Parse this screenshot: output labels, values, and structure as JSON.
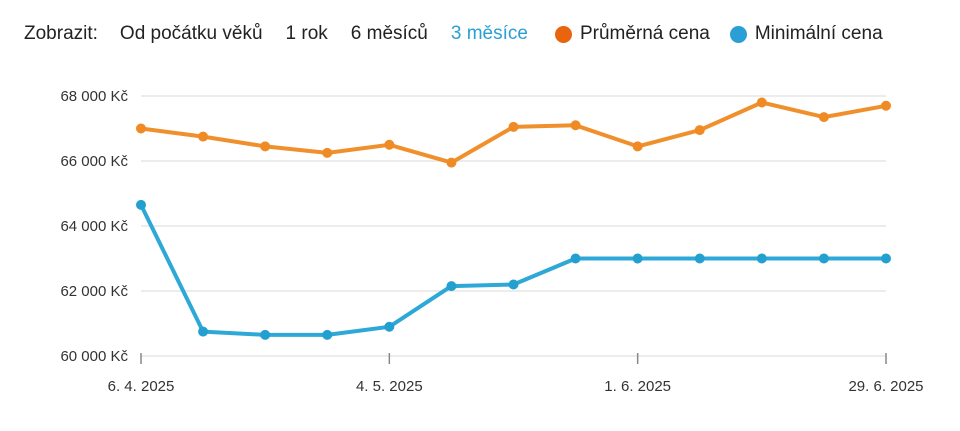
{
  "toolbar": {
    "label": "Zobrazit:",
    "ranges": [
      "Od počátku věků",
      "1 rok",
      "6 měsíců",
      "3 měsíce"
    ],
    "active_range": "3 měsíce"
  },
  "legend": [
    {
      "name": "Průměrná cena",
      "color": "#e8650d"
    },
    {
      "name": "Minimální cena",
      "color": "#2a9fd6"
    }
  ],
  "colors": {
    "avg_line": "#f0902c",
    "avg_dot": "#ef8a24",
    "min_line": "#2ea8d6",
    "min_dot": "#24a0d0",
    "grid": "#e6e6e6",
    "axis": "#888888",
    "active_range": "#2a9fd6"
  },
  "chart_data": {
    "type": "line",
    "x": [
      "2025-04-06",
      "2025-04-13",
      "2025-04-20",
      "2025-04-27",
      "2025-05-04",
      "2025-05-11",
      "2025-05-18",
      "2025-05-25",
      "2025-06-01",
      "2025-06-08",
      "2025-06-15",
      "2025-06-22",
      "2025-06-29"
    ],
    "x_tick_labels": [
      "6. 4. 2025",
      "4. 5. 2025",
      "1. 6. 2025",
      "29. 6. 2025"
    ],
    "x_tick_dates": [
      "2025-04-06",
      "2025-05-04",
      "2025-06-01",
      "2025-06-29"
    ],
    "y_tick_labels": [
      "60 000 Kč",
      "62 000 Kč",
      "64 000 Kč",
      "66 000 Kč",
      "68 000 Kč"
    ],
    "y_ticks": [
      60000,
      62000,
      64000,
      66000,
      68000
    ],
    "ylim": [
      60000,
      68000
    ],
    "grid": true,
    "legend_position": "top-right",
    "series": [
      {
        "name": "Průměrná cena",
        "values": [
          67000,
          66750,
          66450,
          66250,
          66500,
          65950,
          67050,
          67100,
          66450,
          66950,
          67800,
          67350,
          67700
        ]
      },
      {
        "name": "Minimální cena",
        "values": [
          64650,
          60750,
          60650,
          60650,
          60900,
          62150,
          62200,
          63000,
          63000,
          63000,
          63000,
          63000,
          63000
        ]
      }
    ]
  }
}
